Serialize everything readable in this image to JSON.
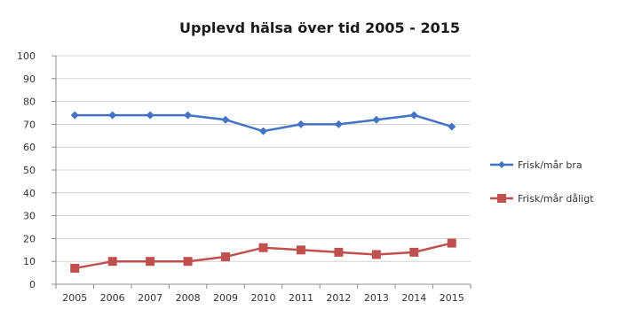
{
  "chart_data": {
    "type": "line",
    "title": "Upplevd hälsa över tid 2005 - 2015",
    "xlabel": "",
    "ylabel": "",
    "x": [
      "2005",
      "2006",
      "2007",
      "2008",
      "2009",
      "2010",
      "2011",
      "2012",
      "2013",
      "2014",
      "2015"
    ],
    "ylim": [
      0,
      100
    ],
    "yticks": [
      0,
      10,
      20,
      30,
      40,
      50,
      60,
      70,
      80,
      90,
      100
    ],
    "grid": true,
    "legend_position": "right",
    "series": [
      {
        "name": "Frisk/mår bra",
        "color": "#4472C4",
        "marker": "diamond",
        "values": [
          74,
          74,
          74,
          74,
          72,
          67,
          70,
          70,
          72,
          74,
          69
        ]
      },
      {
        "name": "Frisk/mår dåligt",
        "color": "#C0504D",
        "marker": "square",
        "values": [
          7,
          10,
          10,
          10,
          12,
          16,
          15,
          14,
          13,
          14,
          18
        ]
      }
    ]
  }
}
